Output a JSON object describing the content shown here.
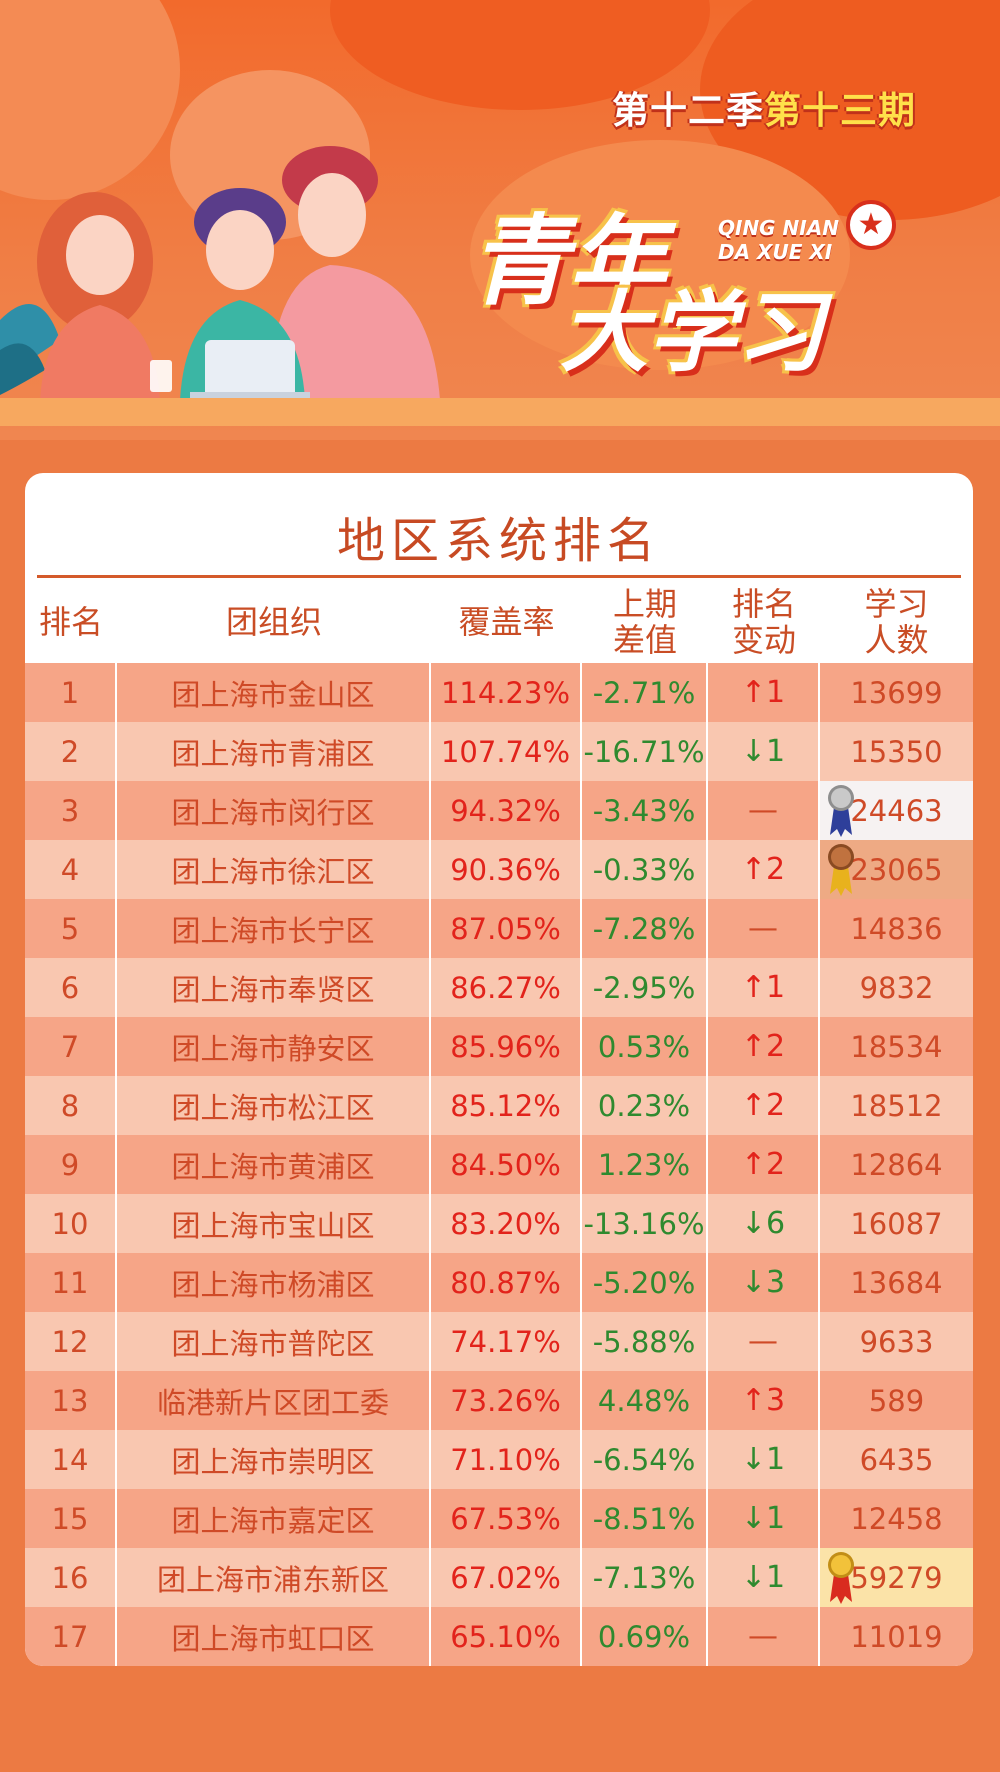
{
  "header": {
    "season_part1": "第十二季",
    "season_part2": "第十三期",
    "logo_line1": "青年",
    "logo_line2": "大学习",
    "pinyin_line1": "QING NIAN",
    "pinyin_line2": "DA XUE XI"
  },
  "table": {
    "title": "地区系统排名",
    "headers": {
      "rank": "排名",
      "org": "团组织",
      "coverage": "覆盖率",
      "diff": "上期\n差值",
      "change": "排名\n变动",
      "learners": "学习\n人数"
    },
    "rows": [
      {
        "rank": "1",
        "org": "团上海市金山区",
        "coverage": "114.23%",
        "diff": "-2.71%",
        "change": "↑1",
        "dir": "up",
        "learners": "13699"
      },
      {
        "rank": "2",
        "org": "团上海市青浦区",
        "coverage": "107.74%",
        "diff": "-16.71%",
        "change": "↓1",
        "dir": "down",
        "learners": "15350"
      },
      {
        "rank": "3",
        "org": "团上海市闵行区",
        "coverage": "94.32%",
        "diff": "-3.43%",
        "change": "—",
        "dir": "same",
        "learners": "24463",
        "medal": "silver"
      },
      {
        "rank": "4",
        "org": "团上海市徐汇区",
        "coverage": "90.36%",
        "diff": "-0.33%",
        "change": "↑2",
        "dir": "up",
        "learners": "23065",
        "medal": "bronze"
      },
      {
        "rank": "5",
        "org": "团上海市长宁区",
        "coverage": "87.05%",
        "diff": "-7.28%",
        "change": "—",
        "dir": "same",
        "learners": "14836"
      },
      {
        "rank": "6",
        "org": "团上海市奉贤区",
        "coverage": "86.27%",
        "diff": "-2.95%",
        "change": "↑1",
        "dir": "up",
        "learners": "9832"
      },
      {
        "rank": "7",
        "org": "团上海市静安区",
        "coverage": "85.96%",
        "diff": "0.53%",
        "change": "↑2",
        "dir": "up",
        "learners": "18534"
      },
      {
        "rank": "8",
        "org": "团上海市松江区",
        "coverage": "85.12%",
        "diff": "0.23%",
        "change": "↑2",
        "dir": "up",
        "learners": "18512"
      },
      {
        "rank": "9",
        "org": "团上海市黄浦区",
        "coverage": "84.50%",
        "diff": "1.23%",
        "change": "↑2",
        "dir": "up",
        "learners": "12864"
      },
      {
        "rank": "10",
        "org": "团上海市宝山区",
        "coverage": "83.20%",
        "diff": "-13.16%",
        "change": "↓6",
        "dir": "down",
        "learners": "16087"
      },
      {
        "rank": "11",
        "org": "团上海市杨浦区",
        "coverage": "80.87%",
        "diff": "-5.20%",
        "change": "↓3",
        "dir": "down",
        "learners": "13684"
      },
      {
        "rank": "12",
        "org": "团上海市普陀区",
        "coverage": "74.17%",
        "diff": "-5.88%",
        "change": "—",
        "dir": "same",
        "learners": "9633"
      },
      {
        "rank": "13",
        "org": "临港新片区团工委",
        "coverage": "73.26%",
        "diff": "4.48%",
        "change": "↑3",
        "dir": "up",
        "learners": "589"
      },
      {
        "rank": "14",
        "org": "团上海市崇明区",
        "coverage": "71.10%",
        "diff": "-6.54%",
        "change": "↓1",
        "dir": "down",
        "learners": "6435"
      },
      {
        "rank": "15",
        "org": "团上海市嘉定区",
        "coverage": "67.53%",
        "diff": "-8.51%",
        "change": "↓1",
        "dir": "down",
        "learners": "12458"
      },
      {
        "rank": "16",
        "org": "团上海市浦东新区",
        "coverage": "67.02%",
        "diff": "-7.13%",
        "change": "↓1",
        "dir": "down",
        "learners": "59279",
        "medal": "gold"
      },
      {
        "rank": "17",
        "org": "团上海市虹口区",
        "coverage": "65.10%",
        "diff": "0.69%",
        "change": "—",
        "dir": "same",
        "learners": "11019"
      }
    ]
  },
  "colors": {
    "up": "#e2231b",
    "down": "#2f8a2f",
    "accent": "#c74a23"
  }
}
